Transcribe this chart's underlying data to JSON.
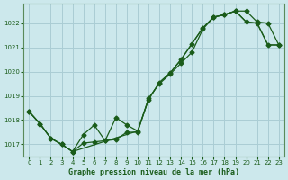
{
  "title": "Graphe pression niveau de la mer (hPa)",
  "background_color": "#cce8ec",
  "grid_color": "#aacdd4",
  "line_color": "#1a5c1a",
  "series1_x": [
    0,
    1,
    2,
    3,
    4,
    5,
    6,
    7,
    8,
    9,
    10,
    11,
    12,
    13,
    14,
    15,
    16,
    17,
    18,
    19,
    20,
    21,
    22,
    23
  ],
  "series1_y": [
    1018.35,
    1017.85,
    1017.25,
    1017.0,
    1016.7,
    1017.05,
    1017.1,
    1017.15,
    1017.2,
    1017.5,
    1017.5,
    1018.9,
    1019.5,
    1019.9,
    1020.35,
    1020.8,
    1021.75,
    1022.25,
    1022.35,
    1022.5,
    1022.05,
    1022.0,
    1021.1,
    1021.1
  ],
  "series2_x": [
    0,
    1,
    2,
    3,
    4,
    5,
    6,
    7,
    8,
    9,
    10,
    11,
    12,
    13,
    14,
    15,
    16,
    17,
    18,
    19,
    20,
    21,
    22,
    23
  ],
  "series2_y": [
    1018.35,
    1017.85,
    1017.25,
    1017.0,
    1016.7,
    1017.4,
    1017.8,
    1017.15,
    1018.1,
    1017.8,
    1017.55,
    1018.85,
    1019.55,
    1019.95,
    1020.5,
    1021.15,
    1021.8,
    1022.25,
    1022.35,
    1022.5,
    1022.5,
    1022.05,
    1022.0,
    1021.1
  ],
  "series3_x": [
    0,
    1,
    2,
    3,
    4,
    10,
    11,
    12,
    13,
    14,
    15,
    16,
    17,
    18,
    19,
    20,
    21,
    22,
    23
  ],
  "series3_y": [
    1018.35,
    1017.85,
    1017.25,
    1017.0,
    1016.7,
    1017.55,
    1018.85,
    1019.55,
    1019.95,
    1020.5,
    1021.15,
    1021.8,
    1022.25,
    1022.35,
    1022.5,
    1022.05,
    1022.0,
    1021.1,
    1021.1
  ],
  "ylim": [
    1016.5,
    1022.8
  ],
  "yticks": [
    1017,
    1018,
    1019,
    1020,
    1021,
    1022
  ],
  "xlim": [
    -0.5,
    23.5
  ],
  "xticks": [
    0,
    1,
    2,
    3,
    4,
    5,
    6,
    7,
    8,
    9,
    10,
    11,
    12,
    13,
    14,
    15,
    16,
    17,
    18,
    19,
    20,
    21,
    22,
    23
  ],
  "xlabel": "Graphe pression niveau de la mer (hPa)"
}
